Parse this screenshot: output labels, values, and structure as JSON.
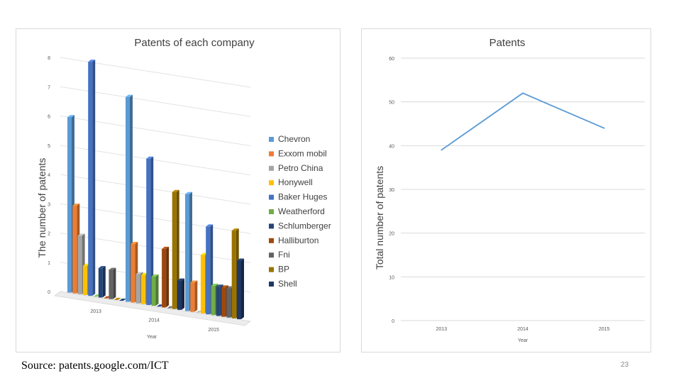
{
  "source_text": "Source: patents.google.com/ICT",
  "page_number": "23",
  "chart_data": [
    {
      "type": "bar",
      "title": "Patents of each company",
      "xlabel": "Year",
      "ylabel": "The number of patents",
      "ylim": [
        0,
        8
      ],
      "yticks": [
        "0",
        "1",
        "2",
        "3",
        "4",
        "5",
        "6",
        "7",
        "8"
      ],
      "categories": [
        "2013",
        "2014",
        "2015"
      ],
      "series": [
        {
          "name": "Chevron",
          "color": "#5b9bd5",
          "values": [
            6,
            7,
            4
          ]
        },
        {
          "name": "Exxom mobil",
          "color": "#ed7d31",
          "values": [
            3,
            2,
            1
          ]
        },
        {
          "name": "Petro China",
          "color": "#a5a5a5",
          "values": [
            2,
            1,
            0
          ]
        },
        {
          "name": "Honywell",
          "color": "#ffc000",
          "values": [
            1,
            1,
            2
          ]
        },
        {
          "name": "Baker Huges",
          "color": "#4472c4",
          "values": [
            8,
            5,
            3
          ]
        },
        {
          "name": "Weatherford",
          "color": "#70ad47",
          "values": [
            0,
            1,
            1
          ]
        },
        {
          "name": "Schlumberger",
          "color": "#264478",
          "values": [
            1,
            0,
            1
          ]
        },
        {
          "name": "Halliburton",
          "color": "#9e480e",
          "values": [
            0,
            2,
            1
          ]
        },
        {
          "name": "Fni",
          "color": "#636363",
          "values": [
            1,
            0,
            1
          ]
        },
        {
          "name": "BP",
          "color": "#997300",
          "values": [
            0,
            4,
            3
          ]
        },
        {
          "name": "Shell",
          "color": "#1f3864",
          "values": [
            0,
            1,
            2
          ]
        }
      ]
    },
    {
      "type": "line",
      "title": "Patents",
      "xlabel": "Year",
      "ylabel": "Total number of patents",
      "ylim": [
        0,
        60
      ],
      "yticks": [
        "0",
        "10",
        "20",
        "30",
        "40",
        "50",
        "60"
      ],
      "categories": [
        "2013",
        "2014",
        "2015"
      ],
      "series": [
        {
          "name": "Patents",
          "color": "#5b9bd5",
          "values": [
            39,
            52,
            44
          ]
        }
      ]
    }
  ]
}
